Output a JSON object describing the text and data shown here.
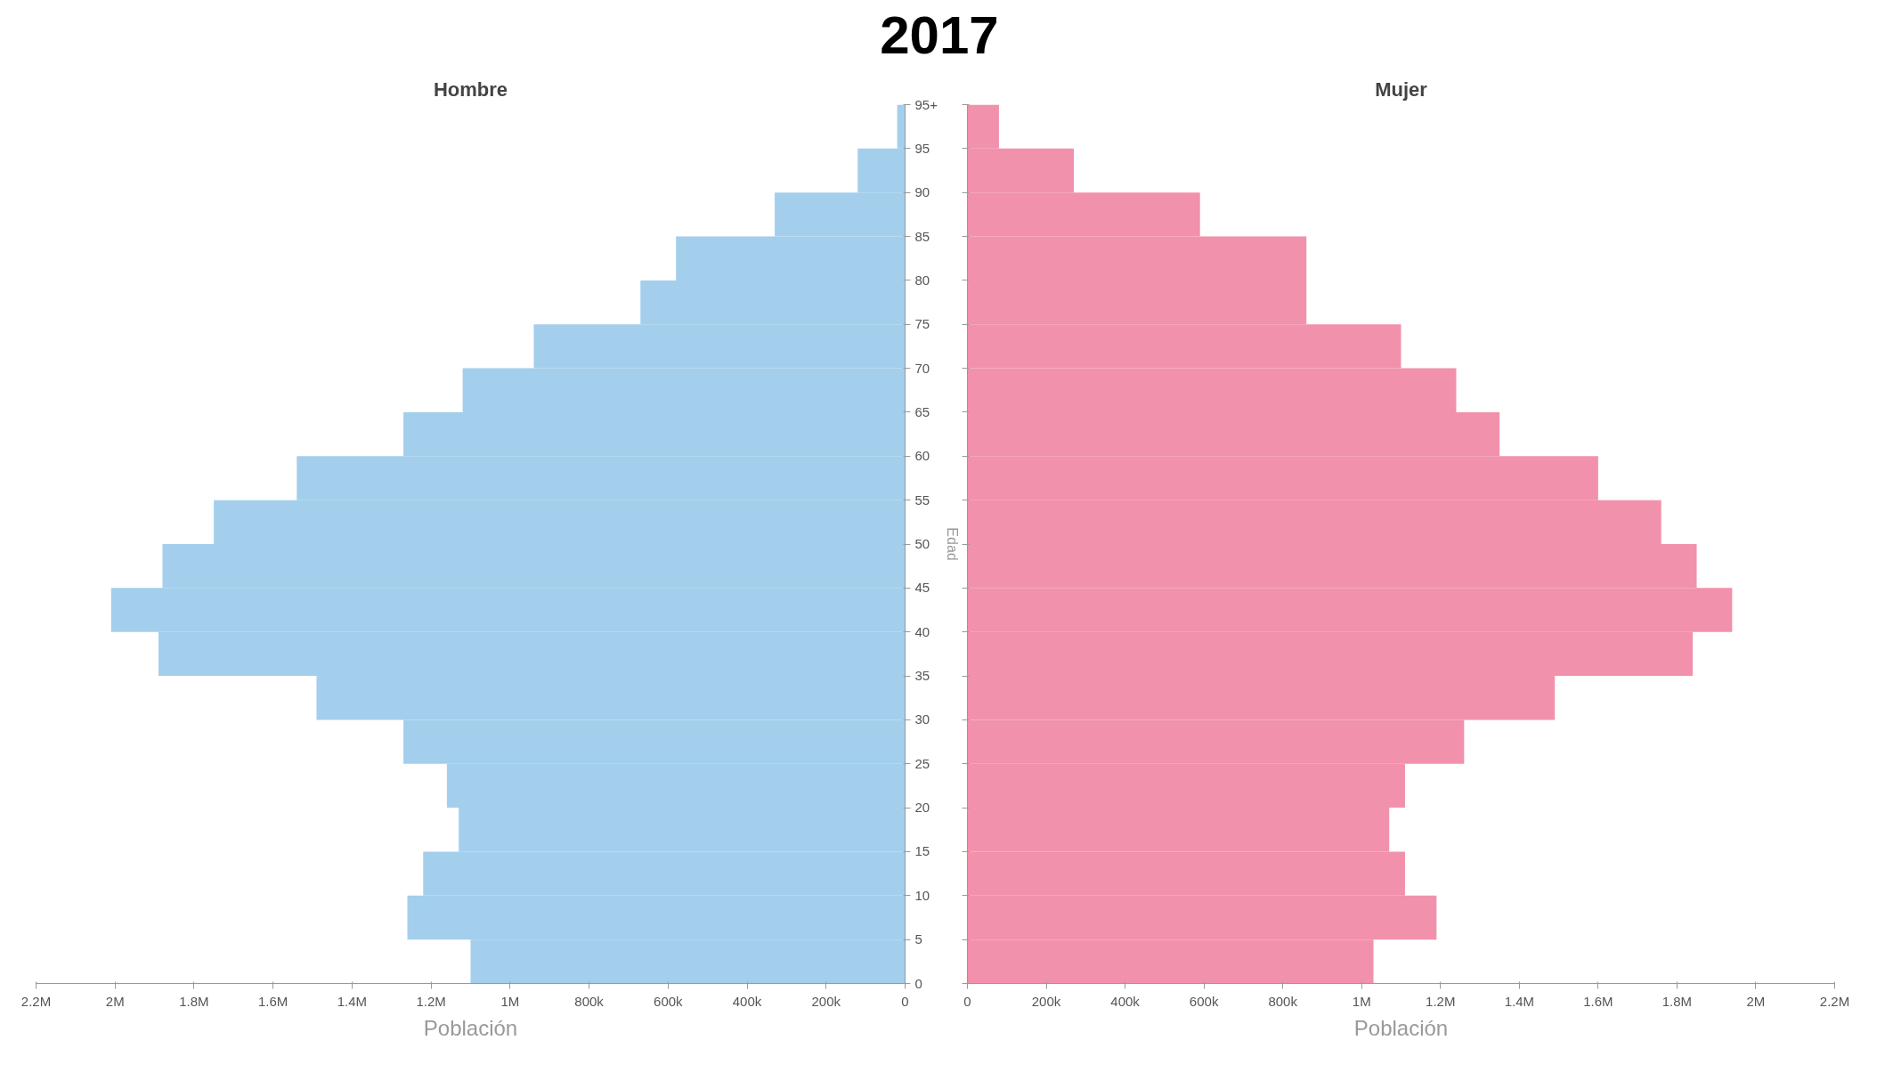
{
  "chart_data": [
    {
      "type": "histogram",
      "orientation": "horizontal",
      "title": "2017",
      "subtitle": "Hombre",
      "xlabel": "Población",
      "ylabel": "Edad",
      "bins": [
        0,
        5,
        10,
        15,
        20,
        25,
        30,
        35,
        40,
        45,
        50,
        55,
        60,
        65,
        70,
        75,
        80,
        85,
        90,
        95,
        100
      ],
      "series": [
        {
          "color": "#a3cfed",
          "values": [
            1100000,
            1260000,
            1220000,
            1130000,
            1160000,
            1270000,
            1490000,
            1890000,
            2010000,
            1880000,
            1750000,
            1540000,
            1270000,
            1120000,
            940000,
            670000,
            580000,
            330000,
            120000,
            20000
          ]
        }
      ],
      "xlim": [
        2200000,
        0
      ],
      "xticks": [
        {
          "value": 2200000,
          "label": "2.2M"
        },
        {
          "value": 2000000,
          "label": "2M"
        },
        {
          "value": 1800000,
          "label": "1.8M"
        },
        {
          "value": 1600000,
          "label": "1.6M"
        },
        {
          "value": 1400000,
          "label": "1.4M"
        },
        {
          "value": 1200000,
          "label": "1.2M"
        },
        {
          "value": 1000000,
          "label": "1M"
        },
        {
          "value": 800000,
          "label": "800k"
        },
        {
          "value": 600000,
          "label": "600k"
        },
        {
          "value": 400000,
          "label": "400k"
        },
        {
          "value": 200000,
          "label": "200k"
        },
        0
      ],
      "ylim": [
        0,
        100
      ],
      "yticks": [
        0,
        5,
        10,
        15,
        20,
        25,
        30,
        35,
        40,
        45,
        50,
        55,
        60,
        65,
        70,
        75,
        80,
        85,
        90,
        95,
        {
          "value": 100,
          "label": "95+"
        }
      ]
    },
    {
      "type": "histogram",
      "orientation": "horizontal",
      "subtitle": "Mujer",
      "xlabel": "Población",
      "bins": [
        0,
        5,
        10,
        15,
        20,
        25,
        30,
        35,
        40,
        45,
        50,
        55,
        60,
        65,
        70,
        75,
        80,
        85,
        90,
        95,
        100
      ],
      "series": [
        {
          "color": "#f291ab",
          "values": [
            1030000,
            1190000,
            1110000,
            1070000,
            1110000,
            1260000,
            1490000,
            1840000,
            1940000,
            1850000,
            1760000,
            1600000,
            1350000,
            1240000,
            1100000,
            860000,
            860000,
            590000,
            270000,
            80000
          ]
        }
      ],
      "xlim": [
        0,
        2200000
      ],
      "xticks": [
        0,
        {
          "value": 200000,
          "label": "200k"
        },
        {
          "value": 400000,
          "label": "400k"
        },
        {
          "value": 600000,
          "label": "600k"
        },
        {
          "value": 800000,
          "label": "800k"
        },
        {
          "value": 1000000,
          "label": "1M"
        },
        {
          "value": 1200000,
          "label": "1.2M"
        },
        {
          "value": 1400000,
          "label": "1.4M"
        },
        {
          "value": 1600000,
          "label": "1.6M"
        },
        {
          "value": 1800000,
          "label": "1.8M"
        },
        {
          "value": 2000000,
          "label": "2M"
        },
        {
          "value": 2200000,
          "label": "2.2M"
        }
      ],
      "ylim": [
        0,
        100
      ],
      "yticks": [
        {
          "value": 0,
          "label": null
        },
        {
          "value": 5,
          "label": null
        },
        {
          "value": 10,
          "label": null
        },
        {
          "value": 15,
          "label": null
        },
        {
          "value": 20,
          "label": null
        },
        {
          "value": 25,
          "label": null
        },
        {
          "value": 30,
          "label": null
        },
        {
          "value": 35,
          "label": null
        },
        {
          "value": 40,
          "label": null
        },
        {
          "value": 45,
          "label": null
        },
        {
          "value": 50,
          "label": null
        },
        {
          "value": 55,
          "label": null
        },
        {
          "value": 60,
          "label": null
        },
        {
          "value": 65,
          "label": null
        },
        {
          "value": 70,
          "label": null
        },
        {
          "value": 75,
          "label": null
        },
        {
          "value": 80,
          "label": null
        },
        {
          "value": 85,
          "label": null
        },
        {
          "value": 90,
          "label": null
        },
        {
          "value": 95,
          "label": null
        },
        {
          "value": 100,
          "label": null
        }
      ],
      "tick_labels": "x"
    }
  ]
}
